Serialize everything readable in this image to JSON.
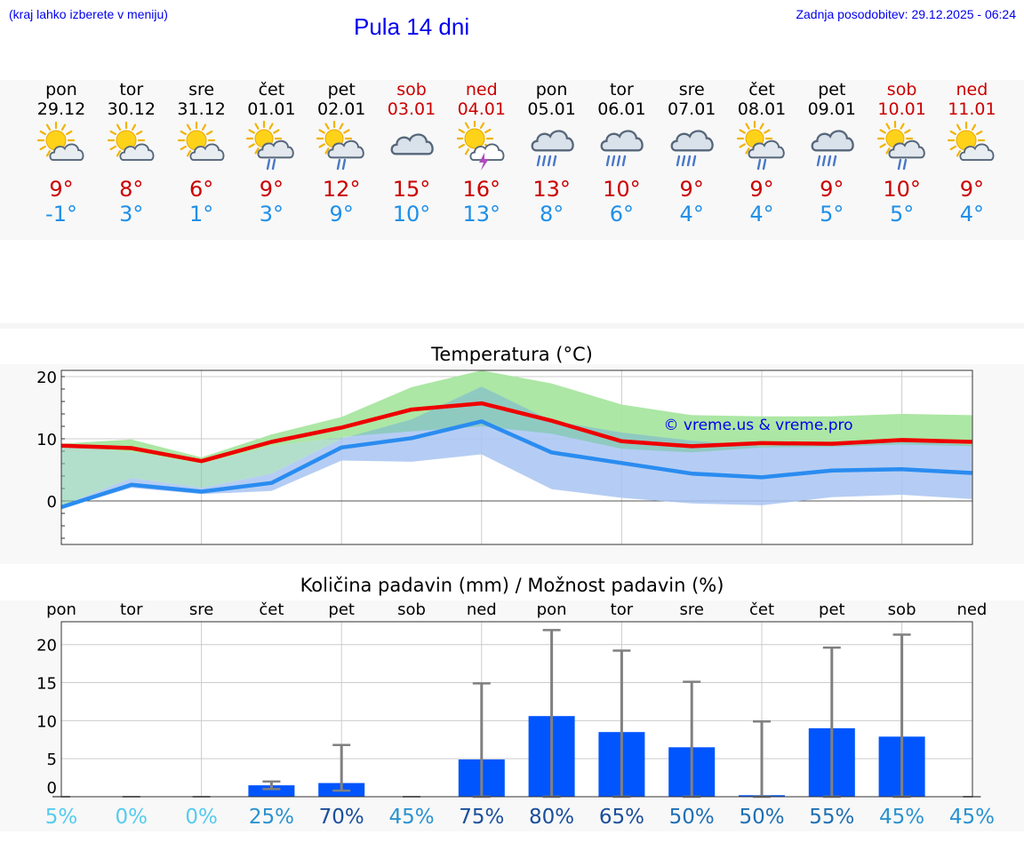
{
  "header": {
    "menu_hint": "(kraj lahko izberete v meniju)",
    "title": "Pula 14 dni",
    "updated": "Zadnja posodobitev: 29.12.2025 - 06:24"
  },
  "days": [
    {
      "name": "pon",
      "date": "29.12",
      "icon": "sun-cloud-icon",
      "tmax": "9°",
      "tmin": "-1°",
      "weekend": false
    },
    {
      "name": "tor",
      "date": "30.12",
      "icon": "sun-cloud-icon",
      "tmax": "8°",
      "tmin": "3°",
      "weekend": false
    },
    {
      "name": "sre",
      "date": "31.12",
      "icon": "sun-cloud-icon",
      "tmax": "6°",
      "tmin": "1°",
      "weekend": false
    },
    {
      "name": "čet",
      "date": "01.01",
      "icon": "sun-cloud-rain-icon",
      "tmax": "9°",
      "tmin": "3°",
      "weekend": false
    },
    {
      "name": "pet",
      "date": "02.01",
      "icon": "sun-cloud-rain-icon",
      "tmax": "12°",
      "tmin": "9°",
      "weekend": false
    },
    {
      "name": "sob",
      "date": "03.01",
      "icon": "cloud-icon",
      "tmax": "15°",
      "tmin": "10°",
      "weekend": true
    },
    {
      "name": "ned",
      "date": "04.01",
      "icon": "sun-thunder-icon",
      "tmax": "16°",
      "tmin": "13°",
      "weekend": true
    },
    {
      "name": "pon",
      "date": "05.01",
      "icon": "cloud-rain-icon",
      "tmax": "13°",
      "tmin": "8°",
      "weekend": false
    },
    {
      "name": "tor",
      "date": "06.01",
      "icon": "cloud-rain-icon",
      "tmax": "10°",
      "tmin": "6°",
      "weekend": false
    },
    {
      "name": "sre",
      "date": "07.01",
      "icon": "cloud-rain-icon",
      "tmax": "9°",
      "tmin": "4°",
      "weekend": false
    },
    {
      "name": "čet",
      "date": "08.01",
      "icon": "sun-cloud-rain-icon",
      "tmax": "9°",
      "tmin": "4°",
      "weekend": false
    },
    {
      "name": "pet",
      "date": "09.01",
      "icon": "cloud-rain-icon",
      "tmax": "9°",
      "tmin": "5°",
      "weekend": false
    },
    {
      "name": "sob",
      "date": "10.01",
      "icon": "sun-cloud-rain-icon",
      "tmax": "10°",
      "tmin": "5°",
      "weekend": true
    },
    {
      "name": "ned",
      "date": "11.01",
      "icon": "sun-cloud-icon",
      "tmax": "9°",
      "tmin": "4°",
      "weekend": true
    }
  ],
  "colors": {
    "max_line": "#ee0000",
    "min_line": "#2a8cf0",
    "max_band": "#a8e6a0",
    "min_band": "#a8c4f2",
    "overlap_band": "#7ec9a8",
    "bar": "#0055ff",
    "whisker": "#808080",
    "pct_light": "#55ccee",
    "pct_dark": "#1a4f9a",
    "title_blue": "#0000ee"
  },
  "chart_data": [
    {
      "type": "line",
      "title": "Temperatura (°C)",
      "watermark": "© vreme.us & vreme.pro",
      "ylim": [
        -7,
        21
      ],
      "yticks": [
        0,
        10,
        20
      ],
      "x": [
        0,
        1,
        2,
        3,
        4,
        5,
        6,
        7,
        8,
        9,
        10,
        11,
        12,
        13
      ],
      "series": [
        {
          "name": "max",
          "values": [
            8.9,
            8.5,
            6.4,
            9.5,
            11.8,
            14.7,
            15.7,
            12.9,
            9.6,
            8.8,
            9.3,
            9.2,
            9.8,
            9.5
          ]
        },
        {
          "name": "min",
          "values": [
            -1,
            2.6,
            1.5,
            2.9,
            8.6,
            10.1,
            12.8,
            7.8,
            6.1,
            4.4,
            3.8,
            4.9,
            5.1,
            4.5
          ]
        }
      ],
      "bands": [
        {
          "name": "max_range",
          "low": [
            8.8,
            7.9,
            6.0,
            8.8,
            10.3,
            11.2,
            12.0,
            10.8,
            8.4,
            7.8,
            8.6,
            8.7,
            9.1,
            8.8
          ],
          "high": [
            9.2,
            9.9,
            7.0,
            10.7,
            13.5,
            18.3,
            21.0,
            18.9,
            15.5,
            13.8,
            13.6,
            13.6,
            14.0,
            13.8
          ]
        },
        {
          "name": "min_range",
          "low": [
            -1.2,
            2.1,
            1.1,
            1.6,
            6.5,
            6.3,
            7.5,
            1.9,
            0.5,
            -0.4,
            -0.7,
            0.6,
            1.0,
            0.3
          ],
          "high": [
            -0.8,
            3.7,
            2.1,
            4.4,
            10.0,
            13.1,
            18.4,
            12.9,
            11.0,
            9.7,
            8.8,
            9.3,
            9.7,
            9.0
          ]
        }
      ]
    },
    {
      "type": "bar",
      "title": "Količina padavin (mm) / Možnost padavin (%)",
      "categories": [
        "pon",
        "tor",
        "sre",
        "čet",
        "pet",
        "sob",
        "ned",
        "pon",
        "tor",
        "sre",
        "čet",
        "pet",
        "sob",
        "ned"
      ],
      "ylim": [
        0,
        23
      ],
      "yticks": [
        0,
        5,
        10,
        15,
        20
      ],
      "values": [
        0,
        0,
        0,
        1.5,
        1.8,
        0,
        4.9,
        10.6,
        8.5,
        6.5,
        0.2,
        9.0,
        7.9,
        0
      ],
      "err_low": [
        0,
        0,
        0,
        1.0,
        0.8,
        0,
        0,
        0,
        0,
        0,
        0,
        0,
        0,
        0
      ],
      "err_high": [
        0,
        0,
        0,
        2.0,
        6.8,
        0,
        14.9,
        21.9,
        19.2,
        15.1,
        9.9,
        19.6,
        21.3,
        0
      ],
      "probability": [
        "5%",
        "0%",
        "0%",
        "25%",
        "70%",
        "45%",
        "75%",
        "80%",
        "65%",
        "50%",
        "50%",
        "55%",
        "45%",
        "45%"
      ],
      "probability_values": [
        5,
        0,
        0,
        25,
        70,
        45,
        75,
        80,
        65,
        50,
        50,
        55,
        45,
        45
      ]
    }
  ]
}
